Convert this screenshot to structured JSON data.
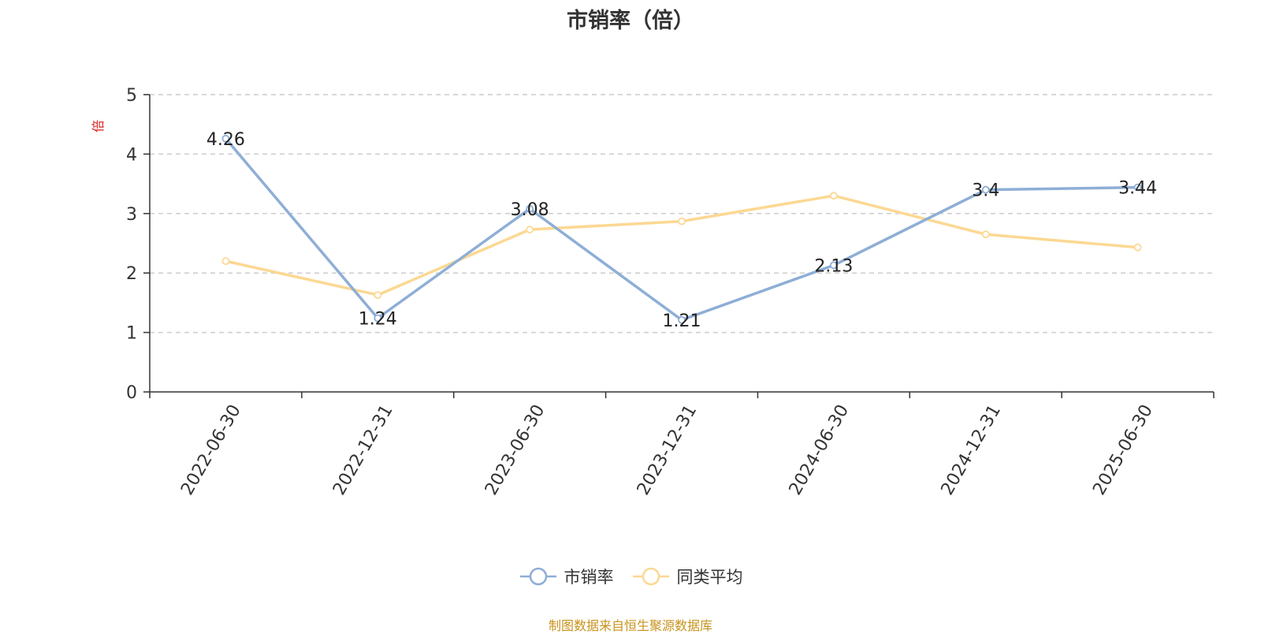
{
  "chart_data": {
    "type": "line",
    "title": "市销率（倍）",
    "ylabel": "倍",
    "xlabel": "",
    "categories": [
      "2022-06-30",
      "2022-12-31",
      "2023-06-30",
      "2023-12-31",
      "2024-06-30",
      "2024-12-31",
      "2025-06-30"
    ],
    "ylim": [
      0,
      5
    ],
    "yticks": [
      "0",
      "1",
      "2",
      "3",
      "4",
      "5"
    ],
    "grid": true,
    "legend_position": "bottom-center",
    "series": [
      {
        "name": "市销率",
        "color": "#8eaed6",
        "values": [
          4.26,
          1.24,
          3.08,
          1.21,
          2.13,
          3.4,
          3.44
        ],
        "labels": [
          "4.26",
          "1.24",
          "3.08",
          "1.21",
          "2.13",
          "3.4",
          "3.44"
        ]
      },
      {
        "name": "同类平均",
        "color": "#fcd893",
        "values": [
          2.2,
          1.63,
          2.73,
          2.87,
          3.3,
          2.65,
          2.43
        ]
      }
    ]
  },
  "footer": {
    "source": "制图数据来自恒生聚源数据库"
  }
}
